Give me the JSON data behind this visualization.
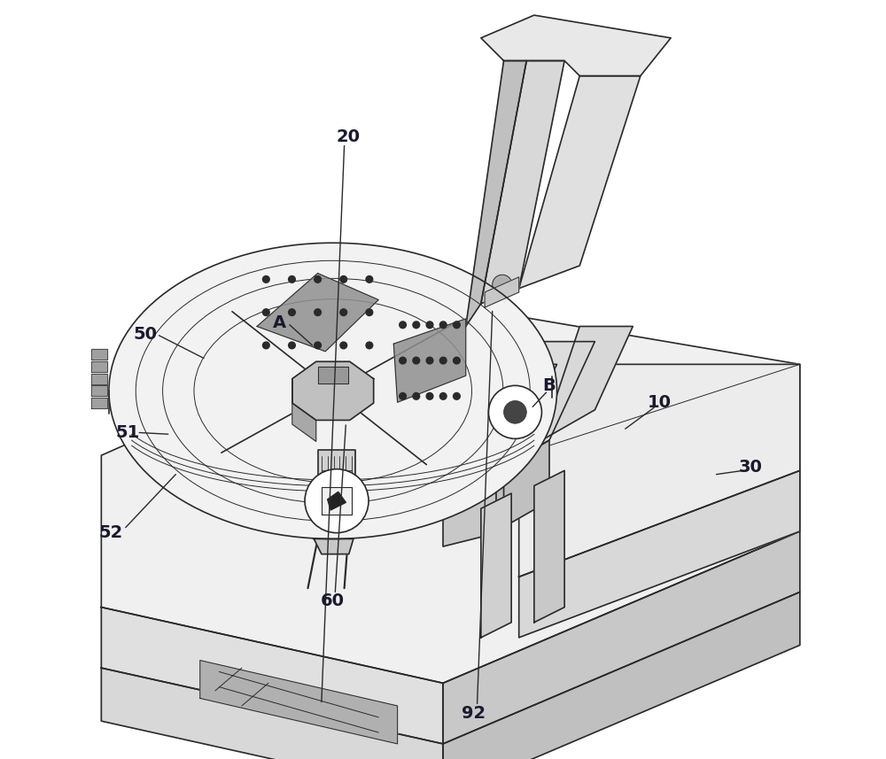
{
  "bg_color": "#ffffff",
  "line_color": "#2a2a2a",
  "label_color": "#1a1a2e",
  "gray_fill": "#d8d8d8",
  "light_gray": "#e8e8e8",
  "figsize": [
    10.0,
    8.57
  ],
  "dpi": 100
}
